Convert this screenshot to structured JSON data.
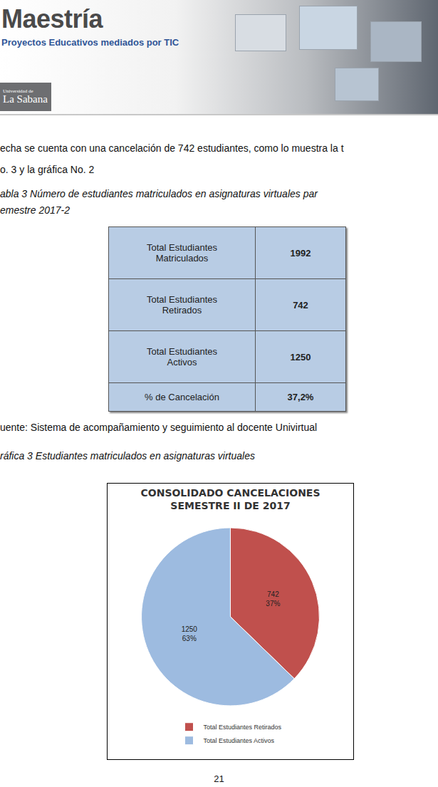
{
  "header": {
    "title": "Maestría",
    "subtitle": "Proyectos Educativos mediados por TIC",
    "logo": [
      "Universidad de",
      "La Sabana"
    ]
  },
  "paragraph": [
    "echa se cuenta con una cancelación de 742 estudiantes, como lo muestra la t",
    "o. 3 y la gráfica No. 2"
  ],
  "table_caption": [
    "abla 3  Número de estudiantes matriculados en asignaturas virtuales par",
    "emestre 2017-2"
  ],
  "table": {
    "rows": [
      [
        [
          "Total Estudiantes",
          "Matriculados"
        ],
        "1992"
      ],
      [
        [
          "Total Estudiantes",
          "Retirados"
        ],
        "742"
      ],
      [
        [
          "Total Estudiantes",
          "Activos"
        ],
        "1250"
      ],
      [
        [
          "% de Cancelación"
        ],
        "37,2%"
      ]
    ]
  },
  "source": "uente: Sistema de acompañamiento y seguimiento al docente Univirtual",
  "chart_caption": "ráfica 3  Estudiantes matriculados en asignaturas virtuales",
  "chart_data": {
    "type": "pie",
    "title": [
      "CONSOLIDADO CANCELACIONES",
      "SEMESTRE II DE 2017"
    ],
    "labels": [
      "Total Estudiantes Retirados",
      "Total Estudiantes Activos"
    ],
    "values": [
      742,
      1250
    ],
    "value_labels": [
      [
        "742",
        "37%"
      ],
      [
        "1250",
        "63%"
      ]
    ],
    "colors": [
      "#c0504d",
      "#9dbbe0"
    ],
    "data_labels": true,
    "legend": "bottom"
  },
  "page_number": "21"
}
